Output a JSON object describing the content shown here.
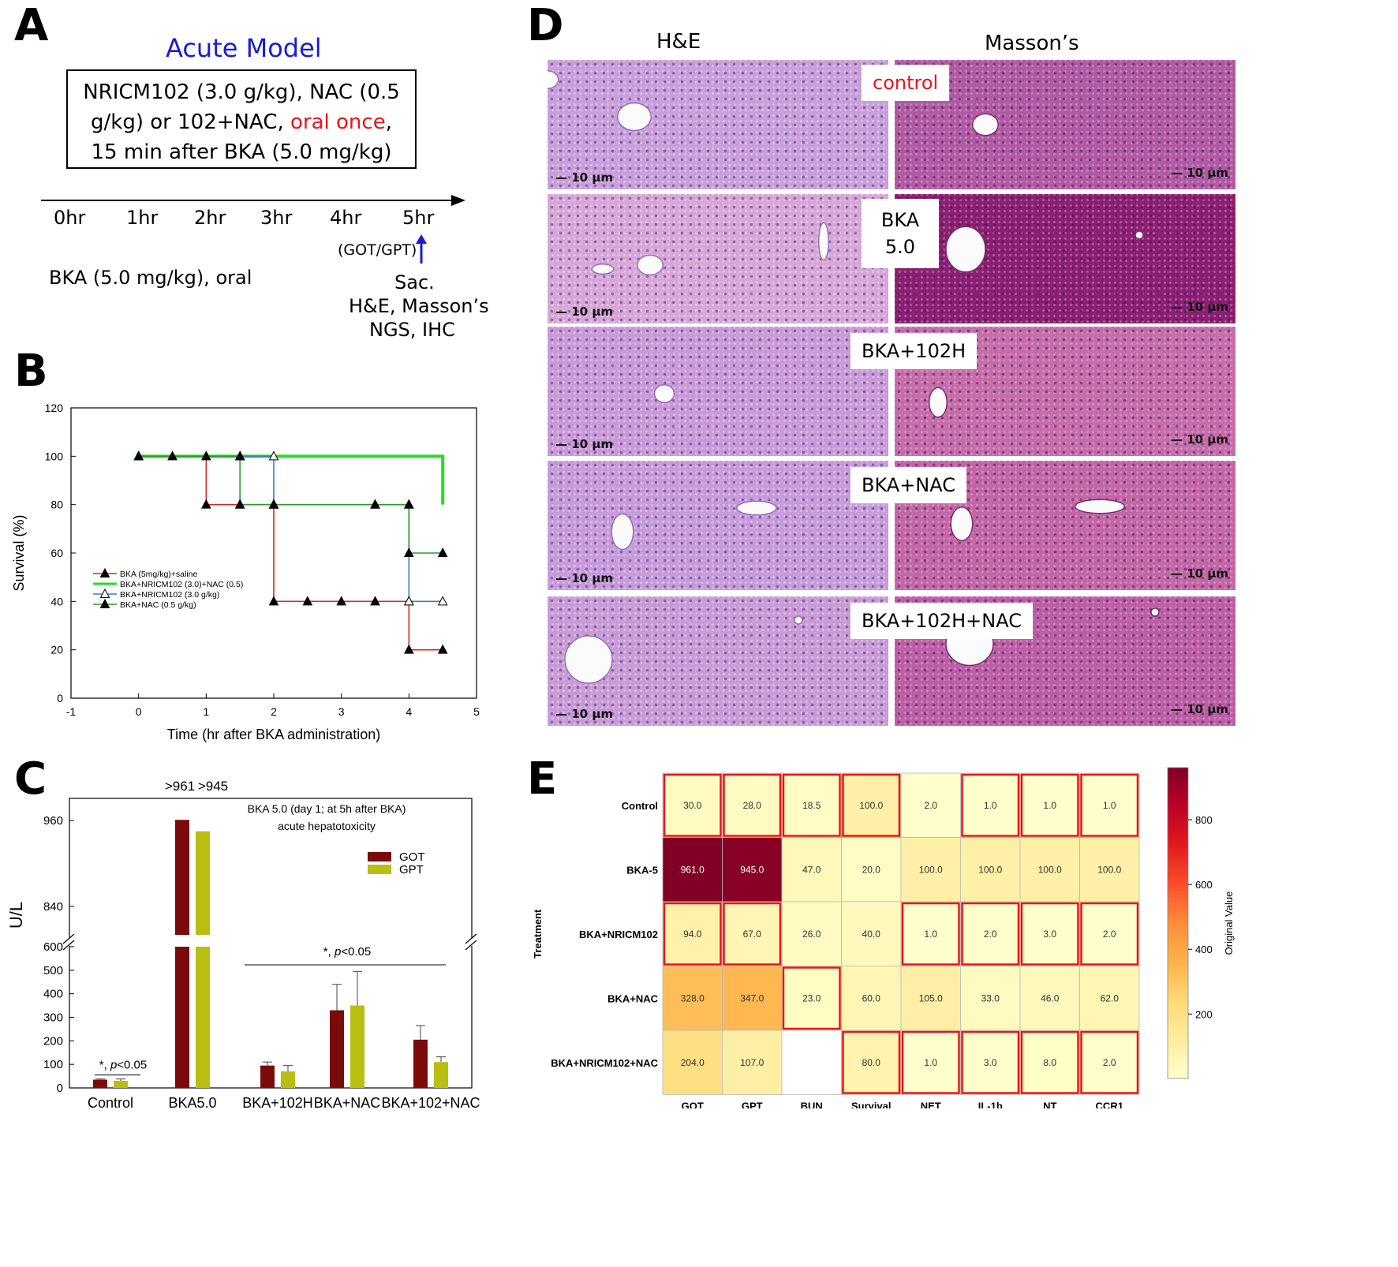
{
  "panels": {
    "A": "A",
    "B": "B",
    "C": "C",
    "D": "D",
    "E": "E"
  },
  "panelA": {
    "title": "Acute Model",
    "box_pre": "NRICM102 (3.0 g/kg), NAC (0.5 g/kg) or 102+NAC,",
    "box_red": "oral once",
    "box_post": ", 15 min after BKA (5.0 mg/kg)",
    "timeline": [
      "0hr",
      "1hr",
      "2hr",
      "3hr",
      "4hr",
      "5hr"
    ],
    "got_gpt": "(GOT/GPT)",
    "bka_dose": "BKA  (5.0 mg/kg), oral",
    "sac": "Sac.",
    "he_masson": "H&E, Masson’s",
    "ngs_ihc": "NGS, IHC",
    "colors": {
      "title": "#1a1adc",
      "red": "#e8141c",
      "arrow": "#1a1adc"
    }
  },
  "panelB": {
    "chart_data": {
      "type": "line",
      "style": "step (Kaplan-Meier)",
      "xlabel": "Time (hr after BKA administration)",
      "ylabel": "Survival (%)",
      "xlim": [
        -1,
        5
      ],
      "ylim": [
        0,
        120
      ],
      "xticks": [
        -1,
        0,
        1,
        2,
        3,
        4,
        5
      ],
      "yticks": [
        0,
        20,
        40,
        60,
        80,
        100,
        120
      ],
      "legend_position": "center-left",
      "series": [
        {
          "name": "BKA (5mg/kg)+saline",
          "color": "#d42a25",
          "marker": "filled-triangle",
          "x": [
            0,
            0.5,
            1,
            1.5,
            2,
            2.5,
            3,
            3.5,
            4,
            4.5
          ],
          "y": [
            100,
            100,
            80,
            80,
            40,
            40,
            40,
            40,
            20,
            20
          ]
        },
        {
          "name": "BKA+NRICM102 (3.0)+NAC (0.5)",
          "color": "#22e022",
          "marker": "none",
          "x": [
            0,
            4.5,
            4.5
          ],
          "y": [
            100,
            100,
            80
          ]
        },
        {
          "name": "BKA+NRICM102 (3.0 g/kg)",
          "color": "#3a7cc4",
          "marker": "open-triangle",
          "x": [
            0,
            1.5,
            2,
            3.5,
            4,
            4.5
          ],
          "y": [
            100,
            100,
            80,
            80,
            40,
            40
          ]
        },
        {
          "name": "BKA+NAC (0.5 g/kg)",
          "color": "#2d9a2d",
          "marker": "filled-triangle",
          "x": [
            0,
            1.5,
            2,
            3.5,
            4,
            4.5
          ],
          "y": [
            100,
            80,
            80,
            80,
            60,
            60
          ]
        }
      ]
    }
  },
  "panelC": {
    "chart_data": {
      "type": "bar",
      "title": "BKA 5.0 (day 1; at 5h after BKA)",
      "subtitle": "acute hepatotoxicity",
      "ylabel": "U/L",
      "axis_break": [
        600,
        800
      ],
      "yticks_lower": [
        0,
        100,
        200,
        300,
        400,
        500,
        600
      ],
      "yticks_upper": [
        840,
        960
      ],
      "categories": [
        "Control",
        "BKA5.0",
        "BKA+102H",
        "BKA+NAC",
        "BKA+102+NAC"
      ],
      "series": [
        {
          "name": "GOT",
          "color": "#7b0b0b",
          "values": [
            35,
            961,
            95,
            330,
            205
          ],
          "errors": [
            3,
            0,
            15,
            110,
            60
          ]
        },
        {
          "name": "GPT",
          "color": "#b9bf12",
          "values": [
            30,
            945,
            70,
            350,
            110
          ],
          "errors": [
            8,
            0,
            25,
            145,
            22
          ]
        }
      ],
      "bar_labels": [
        ">961",
        ">945"
      ],
      "annotations": [
        {
          "star": "*",
          "sep": ", ",
          "p": "p",
          "rest": "<0.05",
          "target": "Control"
        },
        {
          "star": "*",
          "sep": ", ",
          "p": "p",
          "rest": "<0.05",
          "target": "BKA+102H to BKA+102+NAC"
        }
      ]
    }
  },
  "panelD": {
    "columns": [
      "H&E",
      "Masson’s"
    ],
    "rows": [
      {
        "label": "control",
        "label_color": "#e8141c"
      },
      {
        "label": "BKA\n5.0",
        "label_color": "#000000"
      },
      {
        "label": "BKA+102H",
        "label_color": "#000000"
      },
      {
        "label": "BKA+NAC",
        "label_color": "#000000"
      },
      {
        "label": "BKA+102H+NAC",
        "label_color": "#000000"
      }
    ],
    "scale_bar": "10 μm"
  },
  "panelE": {
    "chart_data": {
      "type": "heatmap",
      "xlabel": "",
      "ylabel": "Treatment",
      "colorbar_label": "Original Value",
      "colorbar_ticks": [
        200,
        400,
        600,
        800
      ],
      "colorbar_range": [
        1,
        961
      ],
      "columns": [
        "GOT",
        "GPT",
        "BUN",
        "Survival",
        "NET",
        "IL-1b",
        "NT",
        "CCR1"
      ],
      "rows": [
        "Control",
        "BKA-5",
        "BKA+NRICM102",
        "BKA+NAC",
        "BKA+NRICM102+NAC"
      ],
      "values": [
        [
          30.0,
          28.0,
          18.5,
          100.0,
          2.0,
          1.0,
          1.0,
          1.0
        ],
        [
          961.0,
          945.0,
          47.0,
          20.0,
          100.0,
          100.0,
          100.0,
          100.0
        ],
        [
          94.0,
          67.0,
          26.0,
          40.0,
          1.0,
          2.0,
          3.0,
          2.0
        ],
        [
          328.0,
          347.0,
          23.0,
          60.0,
          105.0,
          33.0,
          46.0,
          62.0
        ],
        [
          204.0,
          107.0,
          null,
          80.0,
          1.0,
          3.0,
          8.0,
          2.0
        ]
      ],
      "highlighted": [
        [
          true,
          true,
          true,
          true,
          false,
          true,
          true,
          true
        ],
        [
          false,
          false,
          false,
          false,
          false,
          false,
          false,
          false
        ],
        [
          true,
          true,
          false,
          false,
          true,
          true,
          true,
          true
        ],
        [
          false,
          false,
          true,
          false,
          false,
          false,
          false,
          false
        ],
        [
          false,
          false,
          false,
          true,
          true,
          true,
          true,
          true
        ]
      ],
      "colormap": "YlOrRd",
      "highlight_color": "#e8141c"
    }
  }
}
